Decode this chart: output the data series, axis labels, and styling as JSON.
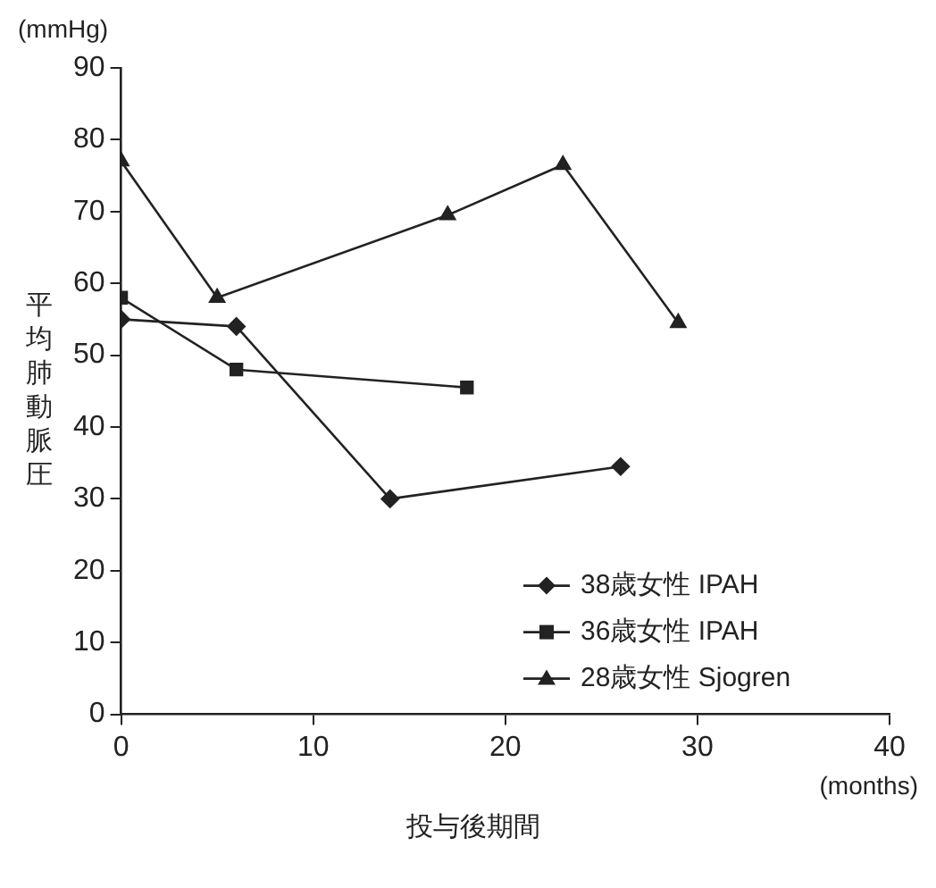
{
  "chart_data": {
    "type": "line",
    "ylabel": "平均肺動脈圧",
    "xlabel": "投与後期間",
    "annotations": [
      "(mmHg)",
      "(months)"
    ],
    "xlim": [
      0,
      40
    ],
    "xticks": [
      0,
      10,
      20,
      30,
      40
    ],
    "ylim": [
      0,
      90
    ],
    "yticks": [
      0,
      10,
      20,
      30,
      40,
      50,
      60,
      70,
      80,
      90
    ],
    "grid": false,
    "legend": "bottom right",
    "series": [
      {
        "name": "38歳女性 IPAH",
        "color": "#222222",
        "marker": "diamond",
        "x": [
          0,
          6,
          14,
          26
        ],
        "values": [
          55,
          54,
          30,
          34.5
        ]
      },
      {
        "name": "36歳女性 IPAH",
        "color": "#222222",
        "marker": "square",
        "x": [
          0,
          6,
          18
        ],
        "values": [
          58,
          48,
          45.5
        ]
      },
      {
        "name": "28歳女性 Sjogren",
        "color": "#222222",
        "marker": "triangle",
        "x": [
          0,
          5,
          17,
          23,
          29
        ],
        "values": [
          77,
          58,
          69.5,
          76.5,
          54.5
        ]
      }
    ]
  }
}
